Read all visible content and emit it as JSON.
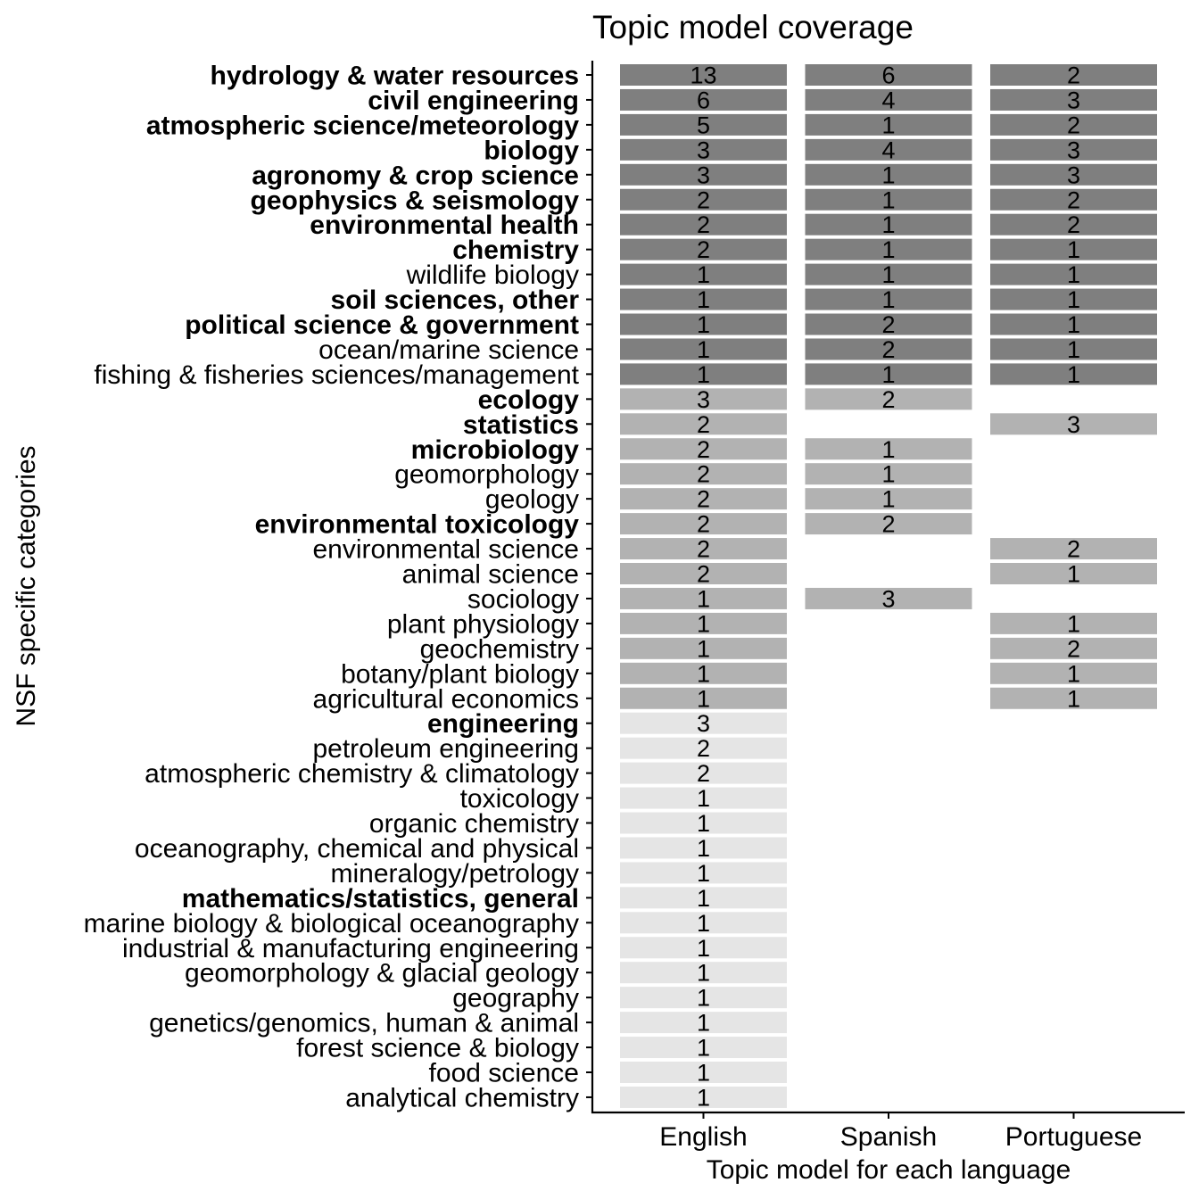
{
  "chart_data": {
    "type": "heatmap",
    "title": "Topic model coverage",
    "xlabel": "Topic model for each language",
    "ylabel": "NSF specific categories",
    "columns": [
      "English",
      "Spanish",
      "Portuguese"
    ],
    "fill_colors": {
      "all_three": "#7f7f7f",
      "two": "#b2b2b2",
      "one": "#e5e5e5"
    },
    "rows": [
      {
        "category": "hydrology & water resources",
        "bold": true,
        "values": [
          13,
          6,
          2
        ]
      },
      {
        "category": "civil engineering",
        "bold": true,
        "values": [
          6,
          4,
          3
        ]
      },
      {
        "category": "atmospheric science/meteorology",
        "bold": true,
        "values": [
          5,
          1,
          2
        ]
      },
      {
        "category": "biology",
        "bold": true,
        "values": [
          3,
          4,
          3
        ]
      },
      {
        "category": "agronomy & crop science",
        "bold": true,
        "values": [
          3,
          1,
          3
        ]
      },
      {
        "category": "geophysics & seismology",
        "bold": true,
        "values": [
          2,
          1,
          2
        ]
      },
      {
        "category": "environmental health",
        "bold": true,
        "values": [
          2,
          1,
          2
        ]
      },
      {
        "category": "chemistry",
        "bold": true,
        "values": [
          2,
          1,
          1
        ]
      },
      {
        "category": "wildlife biology",
        "bold": false,
        "values": [
          1,
          1,
          1
        ]
      },
      {
        "category": "soil sciences, other",
        "bold": true,
        "values": [
          1,
          1,
          1
        ]
      },
      {
        "category": "political science & government",
        "bold": true,
        "values": [
          1,
          2,
          1
        ]
      },
      {
        "category": "ocean/marine science",
        "bold": false,
        "values": [
          1,
          2,
          1
        ]
      },
      {
        "category": "fishing & fisheries sciences/management",
        "bold": false,
        "values": [
          1,
          1,
          1
        ]
      },
      {
        "category": "ecology",
        "bold": true,
        "values": [
          3,
          2,
          null
        ]
      },
      {
        "category": "statistics",
        "bold": true,
        "values": [
          2,
          null,
          3
        ]
      },
      {
        "category": "microbiology",
        "bold": true,
        "values": [
          2,
          1,
          null
        ]
      },
      {
        "category": "geomorphology",
        "bold": false,
        "values": [
          2,
          1,
          null
        ]
      },
      {
        "category": "geology",
        "bold": false,
        "values": [
          2,
          1,
          null
        ]
      },
      {
        "category": "environmental toxicology",
        "bold": true,
        "values": [
          2,
          2,
          null
        ]
      },
      {
        "category": "environmental science",
        "bold": false,
        "values": [
          2,
          null,
          2
        ]
      },
      {
        "category": "animal science",
        "bold": false,
        "values": [
          2,
          null,
          1
        ]
      },
      {
        "category": "sociology",
        "bold": false,
        "values": [
          1,
          3,
          null
        ]
      },
      {
        "category": "plant physiology",
        "bold": false,
        "values": [
          1,
          null,
          1
        ]
      },
      {
        "category": "geochemistry",
        "bold": false,
        "values": [
          1,
          null,
          2
        ]
      },
      {
        "category": "botany/plant biology",
        "bold": false,
        "values": [
          1,
          null,
          1
        ]
      },
      {
        "category": "agricultural economics",
        "bold": false,
        "values": [
          1,
          null,
          1
        ]
      },
      {
        "category": "engineering",
        "bold": true,
        "values": [
          3,
          null,
          null
        ]
      },
      {
        "category": "petroleum engineering",
        "bold": false,
        "values": [
          2,
          null,
          null
        ]
      },
      {
        "category": "atmospheric chemistry & climatology",
        "bold": false,
        "values": [
          2,
          null,
          null
        ]
      },
      {
        "category": "toxicology",
        "bold": false,
        "values": [
          1,
          null,
          null
        ]
      },
      {
        "category": "organic chemistry",
        "bold": false,
        "values": [
          1,
          null,
          null
        ]
      },
      {
        "category": "oceanography, chemical and physical",
        "bold": false,
        "values": [
          1,
          null,
          null
        ]
      },
      {
        "category": "mineralogy/petrology",
        "bold": false,
        "values": [
          1,
          null,
          null
        ]
      },
      {
        "category": "mathematics/statistics, general",
        "bold": true,
        "values": [
          1,
          null,
          null
        ]
      },
      {
        "category": "marine biology & biological oceanography",
        "bold": false,
        "values": [
          1,
          null,
          null
        ]
      },
      {
        "category": "industrial & manufacturing engineering",
        "bold": false,
        "values": [
          1,
          null,
          null
        ]
      },
      {
        "category": "geomorphology & glacial geology",
        "bold": false,
        "values": [
          1,
          null,
          null
        ]
      },
      {
        "category": "geography",
        "bold": false,
        "values": [
          1,
          null,
          null
        ]
      },
      {
        "category": "genetics/genomics, human & animal",
        "bold": false,
        "values": [
          1,
          null,
          null
        ]
      },
      {
        "category": "forest science & biology",
        "bold": false,
        "values": [
          1,
          null,
          null
        ]
      },
      {
        "category": "food science",
        "bold": false,
        "values": [
          1,
          null,
          null
        ]
      },
      {
        "category": "analytical chemistry",
        "bold": false,
        "values": [
          1,
          null,
          null
        ]
      }
    ]
  }
}
